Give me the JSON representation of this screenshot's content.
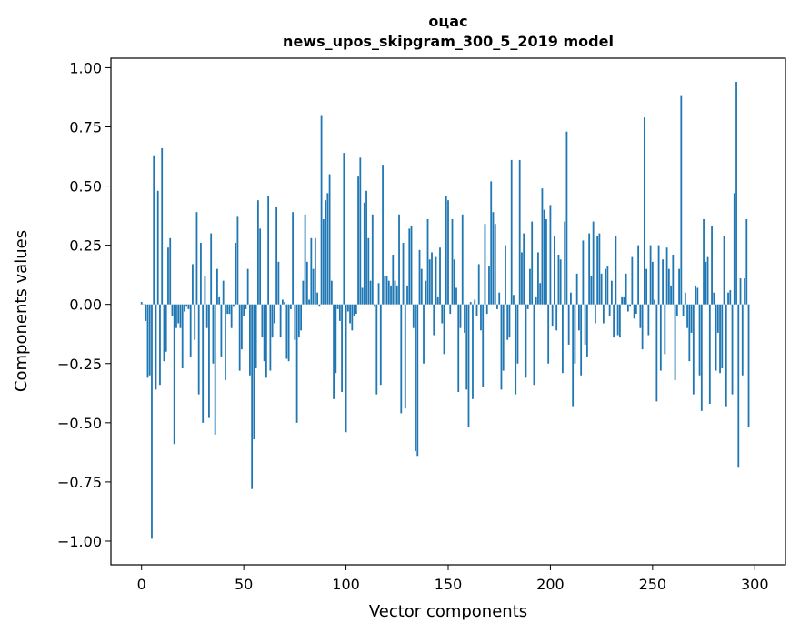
{
  "chart_data": {
    "type": "bar",
    "title": "оцас",
    "subtitle": "news_upos_skipgram_300_5_2019 model",
    "xlabel": "Vector components",
    "ylabel": "Components values",
    "xlim": [
      -15,
      315
    ],
    "ylim": [
      -1.1,
      1.04
    ],
    "xticks": [
      0,
      50,
      100,
      150,
      200,
      250,
      300
    ],
    "yticks": [
      -1.0,
      -0.75,
      -0.5,
      -0.25,
      0.0,
      0.25,
      0.5,
      0.75,
      1.0
    ],
    "ytick_labels": [
      "−1.00",
      "−0.75",
      "−0.50",
      "−0.25",
      "0.00",
      "0.25",
      "0.50",
      "0.75",
      "1.00"
    ],
    "grid": false,
    "legend": "none",
    "bar_color": "#1f77b4",
    "values": [
      0.01,
      0.0,
      -0.07,
      -0.31,
      -0.3,
      -0.99,
      0.63,
      -0.36,
      0.48,
      -0.34,
      0.66,
      -0.24,
      -0.2,
      0.24,
      0.28,
      -0.05,
      -0.59,
      -0.1,
      -0.08,
      -0.1,
      -0.27,
      -0.03,
      -0.01,
      -0.02,
      -0.22,
      0.17,
      -0.15,
      0.39,
      -0.38,
      0.26,
      -0.5,
      0.12,
      -0.1,
      -0.48,
      0.3,
      -0.25,
      -0.55,
      0.15,
      0.03,
      -0.22,
      0.1,
      -0.32,
      -0.04,
      -0.04,
      -0.1,
      -0.01,
      0.26,
      0.37,
      -0.28,
      -0.19,
      -0.05,
      -0.02,
      0.15,
      -0.3,
      -0.78,
      -0.57,
      -0.27,
      0.44,
      0.32,
      -0.14,
      -0.24,
      -0.31,
      0.46,
      -0.28,
      -0.14,
      -0.08,
      0.41,
      0.18,
      -0.14,
      0.02,
      0.01,
      -0.23,
      -0.24,
      -0.02,
      0.39,
      -0.15,
      -0.5,
      -0.14,
      -0.11,
      0.1,
      0.38,
      0.18,
      0.02,
      0.28,
      0.15,
      0.28,
      0.05,
      -0.01,
      0.8,
      0.36,
      0.44,
      0.47,
      0.55,
      0.1,
      -0.4,
      -0.29,
      -0.02,
      -0.07,
      -0.37,
      0.64,
      -0.54,
      -0.03,
      -0.08,
      -0.11,
      -0.05,
      -0.04,
      0.54,
      0.62,
      0.07,
      0.43,
      0.48,
      0.28,
      0.1,
      0.38,
      -0.01,
      -0.38,
      0.09,
      -0.34,
      0.59,
      0.12,
      0.12,
      0.1,
      0.08,
      0.21,
      0.1,
      0.08,
      0.38,
      -0.46,
      0.26,
      -0.44,
      0.08,
      0.32,
      0.33,
      -0.1,
      -0.62,
      -0.64,
      0.23,
      0.15,
      -0.25,
      0.1,
      0.36,
      0.19,
      0.22,
      -0.13,
      0.2,
      0.03,
      0.24,
      -0.08,
      -0.21,
      0.46,
      0.44,
      -0.04,
      0.36,
      0.19,
      0.07,
      -0.37,
      -0.1,
      0.38,
      -0.12,
      -0.36,
      -0.52,
      0.01,
      -0.4,
      0.02,
      -0.05,
      0.17,
      -0.11,
      -0.35,
      0.34,
      -0.04,
      0.16,
      0.52,
      0.39,
      0.34,
      -0.02,
      0.05,
      -0.36,
      -0.28,
      0.25,
      -0.15,
      -0.14,
      0.61,
      0.04,
      -0.38,
      -0.25,
      0.61,
      0.22,
      0.3,
      -0.31,
      -0.02,
      0.15,
      0.35,
      -0.34,
      0.03,
      0.22,
      0.09,
      0.49,
      0.4,
      0.36,
      -0.25,
      0.42,
      -0.09,
      0.29,
      -0.11,
      0.21,
      0.19,
      -0.29,
      0.35,
      0.73,
      -0.17,
      0.05,
      -0.43,
      -0.25,
      0.13,
      -0.11,
      -0.3,
      0.27,
      -0.17,
      -0.22,
      0.3,
      0.12,
      0.35,
      -0.08,
      0.29,
      0.3,
      0.13,
      -0.08,
      0.15,
      0.16,
      -0.05,
      0.1,
      -0.14,
      0.29,
      -0.13,
      -0.14,
      0.03,
      0.03,
      0.13,
      -0.03,
      -0.01,
      0.2,
      -0.06,
      -0.04,
      0.25,
      -0.1,
      -0.19,
      0.79,
      0.15,
      -0.13,
      0.25,
      0.18,
      0.02,
      -0.41,
      0.25,
      -0.28,
      0.19,
      -0.21,
      0.24,
      0.15,
      0.08,
      0.21,
      -0.32,
      -0.05,
      0.15,
      0.88,
      -0.05,
      0.05,
      -0.1,
      -0.24,
      -0.12,
      -0.38,
      0.08,
      0.07,
      -0.3,
      -0.45,
      0.36,
      0.18,
      0.2,
      -0.42,
      0.33,
      0.05,
      -0.28,
      -0.12,
      -0.29,
      -0.27,
      0.29,
      -0.43,
      0.05,
      0.06,
      -0.38,
      0.47,
      0.94,
      -0.69,
      0.11,
      -0.3,
      0.11,
      0.36,
      -0.52
    ]
  }
}
